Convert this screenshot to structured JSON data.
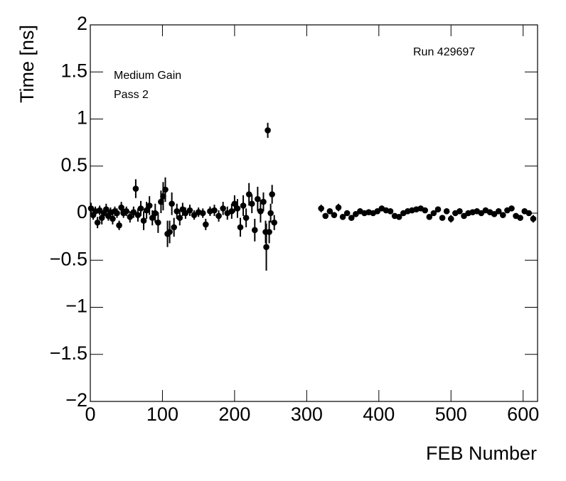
{
  "chart_data": {
    "type": "scatter",
    "xlabel": "FEB Number",
    "ylabel": "Time [ns]",
    "annotations": [
      "Run 429697",
      "Medium Gain",
      "Pass 2"
    ],
    "color": "#000000",
    "x": [
      1,
      4,
      7,
      10,
      13,
      16,
      19,
      22,
      25,
      28,
      31,
      34,
      37,
      40,
      43,
      46,
      50,
      55,
      60,
      63,
      66,
      70,
      74,
      78,
      82,
      86,
      90,
      94,
      98,
      101,
      104,
      107,
      110,
      113,
      116,
      120,
      124,
      128,
      132,
      138,
      144,
      150,
      156,
      160,
      166,
      172,
      178,
      184,
      190,
      196,
      200,
      204,
      208,
      212,
      216,
      220,
      224,
      228,
      232,
      236,
      240,
      243,
      244,
      246,
      248,
      250,
      252,
      255,
      320,
      326,
      332,
      338,
      344,
      350,
      356,
      362,
      368,
      374,
      380,
      386,
      392,
      398,
      404,
      410,
      416,
      422,
      428,
      434,
      440,
      446,
      452,
      458,
      464,
      470,
      476,
      482,
      488,
      494,
      500,
      506,
      512,
      518,
      524,
      530,
      536,
      542,
      548,
      554,
      560,
      566,
      572,
      578,
      584,
      590,
      596,
      602,
      608,
      614
    ],
    "values": [
      0.05,
      -0.02,
      0.02,
      -0.1,
      0.03,
      -0.05,
      0.0,
      0.04,
      -0.03,
      0.01,
      -0.06,
      0.02,
      0.0,
      -0.13,
      0.06,
      0.0,
      0.02,
      -0.04,
      0.01,
      0.26,
      -0.02,
      0.05,
      -0.08,
      0.03,
      0.08,
      -0.05,
      0.0,
      -0.1,
      0.12,
      0.18,
      0.25,
      -0.22,
      -0.2,
      0.1,
      -0.15,
      0.02,
      -0.05,
      0.04,
      0.0,
      0.03,
      -0.02,
      0.01,
      0.0,
      -0.12,
      0.02,
      0.03,
      -0.03,
      0.05,
      0.0,
      0.02,
      0.1,
      0.05,
      -0.15,
      0.08,
      -0.05,
      0.2,
      0.1,
      -0.18,
      0.15,
      0.02,
      0.12,
      -0.2,
      -0.36,
      0.88,
      -0.2,
      0.0,
      0.2,
      -0.1,
      0.05,
      -0.03,
      0.02,
      -0.02,
      0.06,
      -0.04,
      0.0,
      -0.05,
      -0.01,
      0.02,
      0.0,
      0.01,
      0.0,
      0.02,
      0.05,
      0.03,
      0.02,
      -0.03,
      -0.04,
      0.0,
      0.02,
      0.03,
      0.04,
      0.05,
      0.03,
      -0.04,
      0.0,
      0.04,
      -0.05,
      0.02,
      -0.06,
      0.0,
      0.02,
      -0.03,
      0.0,
      0.01,
      0.02,
      0.0,
      0.03,
      0.01,
      -0.01,
      0.02,
      -0.02,
      0.03,
      0.05,
      -0.03,
      -0.05,
      0.02,
      0.0,
      -0.06
    ],
    "errors": [
      0.06,
      0.05,
      0.05,
      0.06,
      0.05,
      0.07,
      0.05,
      0.06,
      0.05,
      0.05,
      0.06,
      0.05,
      0.05,
      0.05,
      0.06,
      0.05,
      0.05,
      0.06,
      0.06,
      0.1,
      0.07,
      0.08,
      0.1,
      0.09,
      0.1,
      0.08,
      0.1,
      0.11,
      0.12,
      0.15,
      0.13,
      0.14,
      0.12,
      0.12,
      0.1,
      0.08,
      0.08,
      0.07,
      0.06,
      0.06,
      0.05,
      0.05,
      0.05,
      0.06,
      0.05,
      0.06,
      0.06,
      0.07,
      0.07,
      0.08,
      0.09,
      0.1,
      0.1,
      0.11,
      0.1,
      0.12,
      0.1,
      0.12,
      0.13,
      0.12,
      0.1,
      0.12,
      0.25,
      0.08,
      0.12,
      0.1,
      0.1,
      0.08,
      0.04,
      0.03,
      0.03,
      0.03,
      0.04,
      0.03,
      0.03,
      0.03,
      0.03,
      0.03,
      0.03,
      0.03,
      0.03,
      0.03,
      0.03,
      0.03,
      0.03,
      0.03,
      0.03,
      0.03,
      0.03,
      0.03,
      0.03,
      0.03,
      0.03,
      0.03,
      0.03,
      0.03,
      0.03,
      0.03,
      0.04,
      0.03,
      0.03,
      0.03,
      0.03,
      0.03,
      0.03,
      0.03,
      0.03,
      0.03,
      0.03,
      0.03,
      0.03,
      0.03,
      0.03,
      0.03,
      0.03,
      0.03,
      0.03,
      0.04
    ],
    "xlim": [
      0,
      620
    ],
    "ylim": [
      -2,
      2
    ],
    "xticks": [
      0,
      100,
      200,
      300,
      400,
      500,
      600
    ],
    "yticks": [
      {
        "value": -2,
        "label": "−2"
      },
      {
        "value": -1.5,
        "label": "−1.5"
      },
      {
        "value": -1,
        "label": "−1"
      },
      {
        "value": -0.5,
        "label": "−0.5"
      },
      0,
      0.5,
      1,
      1.5,
      2
    ]
  }
}
